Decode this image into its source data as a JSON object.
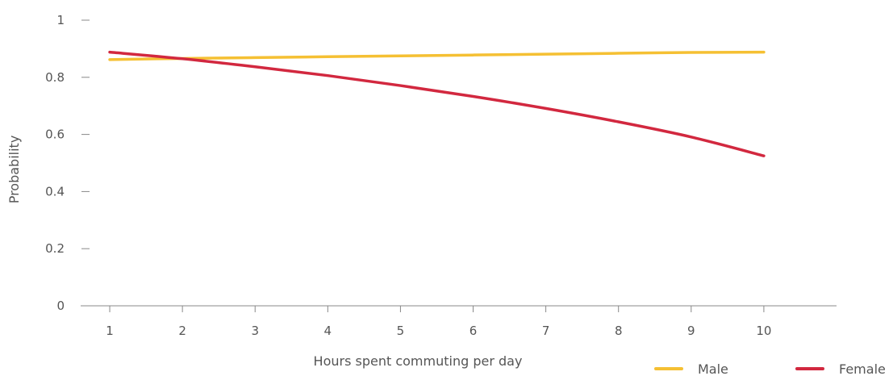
{
  "chart_data": {
    "type": "line",
    "xlabel": "Hours spent commuting per day",
    "ylabel": "Probability",
    "x": [
      1,
      2,
      3,
      4,
      5,
      6,
      7,
      8,
      9,
      10
    ],
    "x_tick_labels": [
      "1",
      "2",
      "3",
      "4",
      "5",
      "6",
      "7",
      "8",
      "9",
      "10"
    ],
    "y_ticks": [
      0,
      0.2,
      0.4,
      0.6,
      0.8,
      1
    ],
    "y_tick_labels": [
      "0",
      "0.2",
      "0.4",
      "0.6",
      "0.8",
      "1"
    ],
    "xlim": [
      0.6,
      11.0
    ],
    "ylim": [
      0,
      1
    ],
    "grid": false,
    "legend_position": "bottom-right",
    "series": [
      {
        "name": "Male",
        "color": "#f5c033",
        "values": [
          0.862,
          0.866,
          0.869,
          0.872,
          0.875,
          0.878,
          0.881,
          0.884,
          0.887,
          0.888
        ]
      },
      {
        "name": "Female",
        "color": "#d2283f",
        "values": [
          0.888,
          0.865,
          0.837,
          0.806,
          0.771,
          0.733,
          0.691,
          0.644,
          0.591,
          0.525
        ]
      }
    ]
  }
}
